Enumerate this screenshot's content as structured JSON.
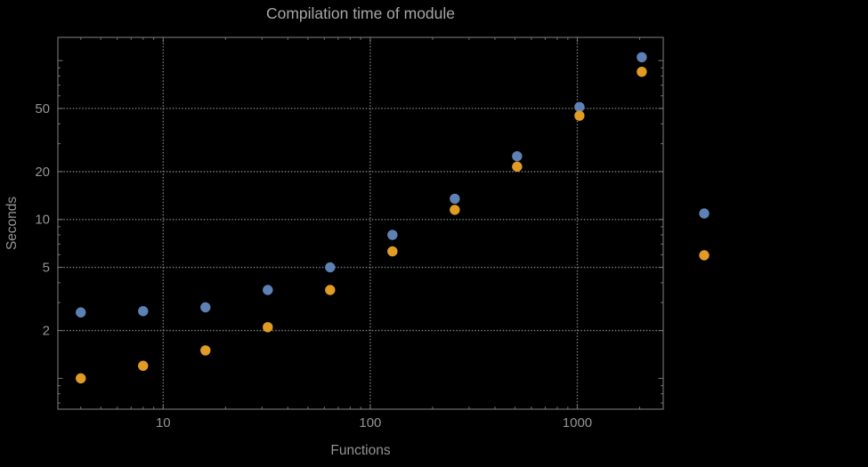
{
  "chart_data": {
    "type": "scatter",
    "title": "Compilation time of module",
    "xlabel": "Functions",
    "ylabel": "Seconds",
    "x_scale": "log",
    "y_scale": "log",
    "grid": true,
    "xlim": [
      3.1,
      2600
    ],
    "ylim": [
      0.64,
      140
    ],
    "x_ticks": [
      10,
      100,
      1000
    ],
    "y_ticks": [
      2,
      5,
      10,
      20,
      50
    ],
    "x": [
      4,
      8,
      16,
      32,
      64,
      128,
      256,
      512,
      1024,
      2048
    ],
    "series": [
      {
        "name": "blue",
        "color": "#5E81B5",
        "values": [
          2.6,
          2.65,
          2.8,
          3.6,
          5.0,
          8.0,
          13.5,
          25,
          51,
          105
        ]
      },
      {
        "name": "orange",
        "color": "#E19C24",
        "values": [
          1.0,
          1.2,
          1.5,
          2.1,
          3.6,
          6.3,
          11.5,
          21.5,
          45,
          85
        ]
      }
    ],
    "legend": {
      "position": "outside-right",
      "markers": [
        {
          "series": "blue",
          "color": "#5E81B5"
        },
        {
          "series": "orange",
          "color": "#E19C24"
        }
      ]
    }
  },
  "colors": {
    "background": "#000000",
    "frame": "#6e6e6e",
    "grid": "#7d7d7d",
    "text": "#949494",
    "series_blue": "#5E81B5",
    "series_orange": "#E19C24"
  }
}
